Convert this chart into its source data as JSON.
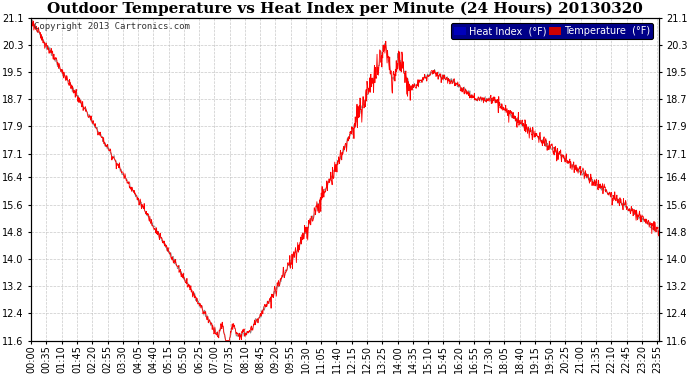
{
  "title": "Outdoor Temperature vs Heat Index per Minute (24 Hours) 20130320",
  "copyright": "Copyright 2013 Cartronics.com",
  "background_color": "#ffffff",
  "plot_bg_color": "#ffffff",
  "grid_color": "#bbbbbb",
  "line_color_temp": "#ff0000",
  "line_color_heat": "#888888",
  "ylim": [
    11.6,
    21.1
  ],
  "yticks": [
    11.6,
    12.4,
    13.2,
    14.0,
    14.8,
    15.6,
    16.4,
    17.1,
    17.9,
    18.7,
    19.5,
    20.3,
    21.1
  ],
  "legend_heat_bg": "#0000bb",
  "legend_temp_bg": "#cc0000",
  "title_fontsize": 11,
  "tick_fontsize": 7,
  "copyright_fontsize": 6.5
}
